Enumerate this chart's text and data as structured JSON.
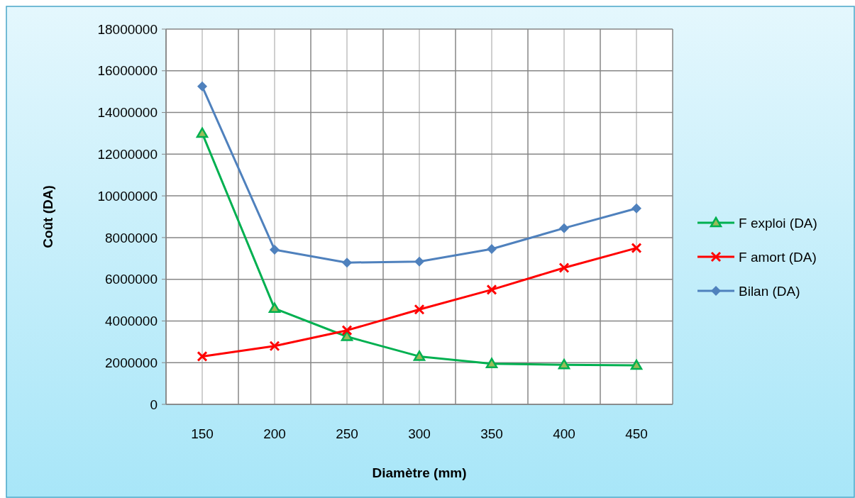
{
  "chart_data": {
    "type": "line",
    "xlabel": "Diamètre (mm)",
    "ylabel": "Coût (DA)",
    "categories": [
      "150",
      "200",
      "250",
      "300",
      "350",
      "400",
      "450"
    ],
    "series": [
      {
        "name": "F exploi (DA)",
        "color": "#00b050",
        "marker": "triangle",
        "values": [
          13000000,
          4600000,
          3250000,
          2300000,
          1950000,
          1900000,
          1870000
        ]
      },
      {
        "name": "F amort (DA)",
        "color": "#ff0000",
        "marker": "cross",
        "values": [
          2300000,
          2800000,
          3550000,
          4550000,
          5500000,
          6550000,
          7500000
        ]
      },
      {
        "name": "Bilan (DA)",
        "color": "#4f81bd",
        "marker": "diamond",
        "values": [
          15250000,
          7420000,
          6800000,
          6850000,
          7450000,
          8450000,
          9400000
        ]
      }
    ],
    "ylim": [
      0,
      18000000
    ],
    "yticks": [
      0,
      2000000,
      4000000,
      6000000,
      8000000,
      10000000,
      12000000,
      14000000,
      16000000,
      18000000
    ],
    "grid": true,
    "legend": "right"
  }
}
